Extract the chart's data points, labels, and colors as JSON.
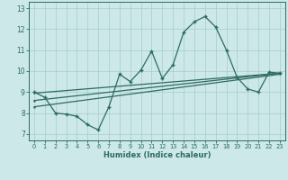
{
  "xlabel": "Humidex (Indice chaleur)",
  "bg_color": "#cce8e8",
  "grid_color": "#a8cccc",
  "line_color": "#2d6b60",
  "xlim": [
    -0.5,
    23.5
  ],
  "ylim": [
    6.7,
    13.3
  ],
  "xticks": [
    0,
    1,
    2,
    3,
    4,
    5,
    6,
    7,
    8,
    9,
    10,
    11,
    12,
    13,
    14,
    15,
    16,
    17,
    18,
    19,
    20,
    21,
    22,
    23
  ],
  "yticks": [
    7,
    8,
    9,
    10,
    11,
    12,
    13
  ],
  "line1_x": [
    0,
    1,
    2,
    3,
    4,
    5,
    6,
    7,
    8,
    9,
    10,
    11,
    12,
    13,
    14,
    15,
    16,
    17,
    18,
    19,
    20,
    21,
    22,
    23
  ],
  "line1_y": [
    9.0,
    8.75,
    8.0,
    7.95,
    7.85,
    7.45,
    7.2,
    8.3,
    9.85,
    9.5,
    10.05,
    10.95,
    9.65,
    10.3,
    11.85,
    12.35,
    12.6,
    12.1,
    11.0,
    9.7,
    9.15,
    9.0,
    9.95,
    9.9
  ],
  "line2_x": [
    0,
    23
  ],
  "line2_y": [
    8.95,
    9.9
  ],
  "line3_x": [
    0,
    23
  ],
  "line3_y": [
    8.6,
    9.9
  ],
  "line4_x": [
    0,
    23
  ],
  "line4_y": [
    8.3,
    9.85
  ]
}
